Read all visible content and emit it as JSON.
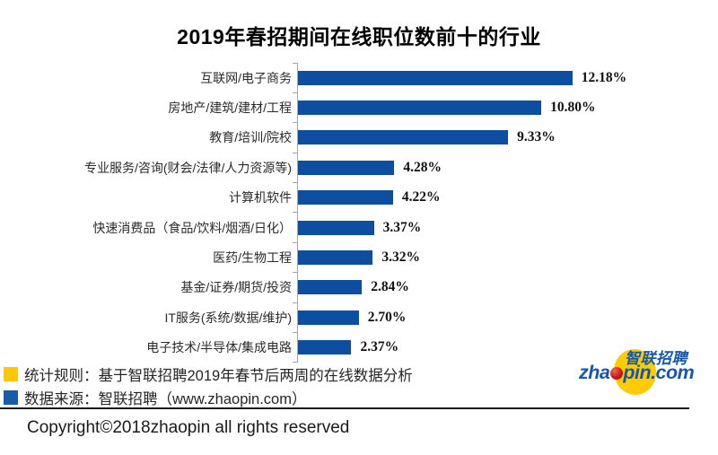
{
  "title": "2019年春招期间在线职位数前十的行业",
  "chart_data": {
    "type": "bar",
    "orientation": "horizontal",
    "title": "2019年春招期间在线职位数前十的行业",
    "categories": [
      "互联网/电子商务",
      "房地产/建筑/建材/工程",
      "教育/培训/院校",
      "专业服务/咨询(财会/法律/人力资源等)",
      "计算机软件",
      "快速消费品（食品/饮料/烟酒/日化）",
      "医药/生物工程",
      "基金/证券/期货/投资",
      "IT服务(系统/数据/维护)",
      "电子技术/半导体/集成电路"
    ],
    "values": [
      12.18,
      10.8,
      9.33,
      4.28,
      4.22,
      3.37,
      3.32,
      2.84,
      2.7,
      2.37
    ],
    "value_labels": [
      "12.18%",
      "10.80%",
      "9.33%",
      "4.28%",
      "4.22%",
      "3.37%",
      "3.32%",
      "2.84%",
      "2.70%",
      "2.37%"
    ],
    "xlabel": "",
    "ylabel": "",
    "xlim": [
      0,
      13
    ],
    "grid": false,
    "bar_color": "#0d4ea0",
    "axis_color": "#a6a6a6"
  },
  "footer": {
    "notes": [
      {
        "marker_color": "#ffc60a",
        "text": "统计规则：基于智联招聘2019年春节后两周的在线数据分析"
      },
      {
        "marker_color": "#1a5ca8",
        "text": "数据来源：智联招聘（www.zhaopin.com）"
      }
    ],
    "copyright": "Copyright©2018zhaopin all rights reserved"
  },
  "logo": {
    "cn_text": "智联招聘",
    "en_prefix": "zha",
    "en_suffix": "pin.com",
    "blue": "#1658a7",
    "yellow": "#ffcb05",
    "red": "#cb1a1c"
  }
}
